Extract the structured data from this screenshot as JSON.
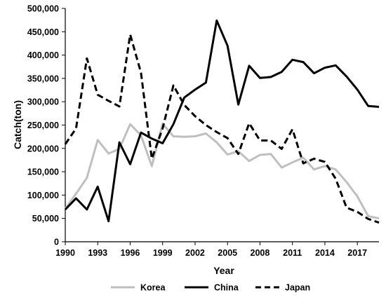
{
  "chart_data": {
    "type": "line",
    "title": "",
    "xlabel": "Year",
    "ylabel": "Catch(ton)",
    "xlim": [
      1990,
      2019
    ],
    "ylim": [
      0,
      500000
    ],
    "grid": false,
    "legend_position": "bottom",
    "x_ticks": [
      1990,
      1993,
      1996,
      1999,
      2002,
      2005,
      2008,
      2011,
      2014,
      2017
    ],
    "x_tick_labels": [
      "1990",
      "1993",
      "1996",
      "1999",
      "2002",
      "2005",
      "2008",
      "2011",
      "2014",
      "2017"
    ],
    "y_ticks": [
      0,
      50000,
      100000,
      150000,
      200000,
      250000,
      300000,
      350000,
      400000,
      450000,
      500000
    ],
    "y_tick_labels": [
      "0",
      "50,000",
      "100,000",
      "150,000",
      "200,000",
      "250,000",
      "300,000",
      "350,000",
      "400,000",
      "450,000",
      "500,000"
    ],
    "x": [
      1990,
      1991,
      1992,
      1993,
      1994,
      1995,
      1996,
      1997,
      1998,
      1999,
      2000,
      2001,
      2002,
      2003,
      2004,
      2005,
      2006,
      2007,
      2008,
      2009,
      2010,
      2011,
      2012,
      2013,
      2014,
      2015,
      2016,
      2017,
      2018,
      2019
    ],
    "series": [
      {
        "name": "Korea",
        "color": "#bfbfbf",
        "dash": "solid",
        "values": [
          71000,
          103000,
          137000,
          218000,
          189000,
          199000,
          252000,
          228000,
          162000,
          253000,
          226000,
          225000,
          226000,
          232000,
          213000,
          187000,
          194000,
          173000,
          186000,
          188000,
          159000,
          170000,
          180000,
          155000,
          162000,
          155000,
          128000,
          97000,
          55000,
          50000
        ]
      },
      {
        "name": "China",
        "color": "#000000",
        "dash": "solid",
        "values": [
          69000,
          93000,
          69000,
          118000,
          44000,
          213000,
          166000,
          234000,
          221000,
          211000,
          252000,
          309000,
          326000,
          341000,
          474000,
          420000,
          294000,
          377000,
          351000,
          353000,
          364000,
          390000,
          385000,
          361000,
          373000,
          378000,
          354000,
          326000,
          291000,
          289000
        ]
      },
      {
        "name": "Japan",
        "color": "#000000",
        "dash": "dashed",
        "values": [
          209000,
          243000,
          393000,
          315000,
          302000,
          290000,
          444000,
          362000,
          178000,
          243000,
          335000,
          293000,
          269000,
          250000,
          235000,
          222000,
          188000,
          254000,
          217000,
          217000,
          199000,
          241000,
          168000,
          178000,
          171000,
          135000,
          73000,
          64000,
          49000,
          41000
        ]
      }
    ]
  }
}
